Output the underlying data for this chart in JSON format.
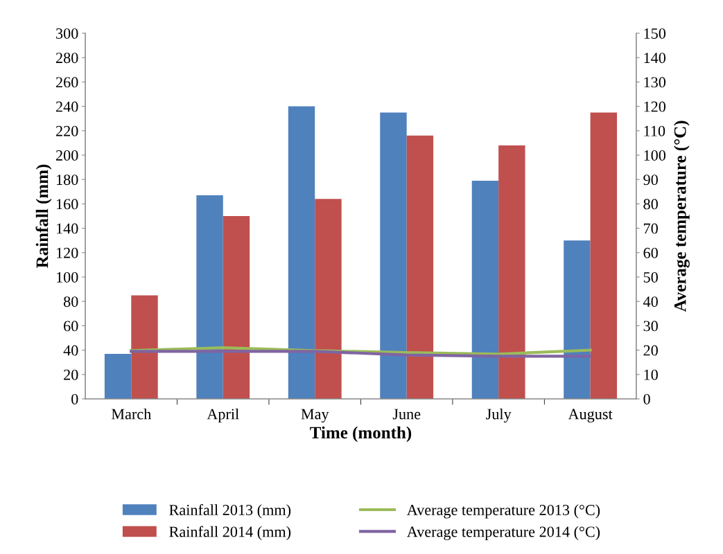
{
  "chart_data": {
    "type": "bar",
    "xlabel": "Time (month)",
    "ylabel": "Rainfall (mm)",
    "y2label": "Average temperature (°C)",
    "categories": [
      "March",
      "April",
      "May",
      "June",
      "July",
      "August"
    ],
    "series": [
      {
        "name": "Rainfall 2013 (mm)",
        "color": "#4f81bd",
        "values": [
          37,
          167,
          240,
          235,
          179,
          130
        ]
      },
      {
        "name": "Rainfall 2014 (mm)",
        "color": "#c0504d",
        "values": [
          85,
          150,
          164,
          216,
          208,
          235
        ]
      },
      {
        "name": "Average temperature 2013 (°C)",
        "type": "line",
        "axis": "y2",
        "color": "#9bbb59",
        "values": [
          19.8,
          21,
          19.8,
          19,
          18.4,
          20
        ]
      },
      {
        "name": "Average temperature 2014 (°C)",
        "type": "line",
        "axis": "y2",
        "color": "#8064a2",
        "values": [
          19.5,
          19.5,
          19.5,
          18,
          17.5,
          17.5
        ]
      }
    ],
    "ylim": [
      0,
      300
    ],
    "yticks": [
      0,
      20,
      40,
      60,
      80,
      100,
      120,
      140,
      160,
      180,
      200,
      220,
      240,
      260,
      280,
      300
    ],
    "y2lim": [
      0,
      150
    ],
    "y2ticks": [
      0,
      10,
      20,
      30,
      40,
      50,
      60,
      70,
      80,
      90,
      100,
      110,
      120,
      130,
      140,
      150
    ],
    "legend": "bottom",
    "grid": false
  }
}
